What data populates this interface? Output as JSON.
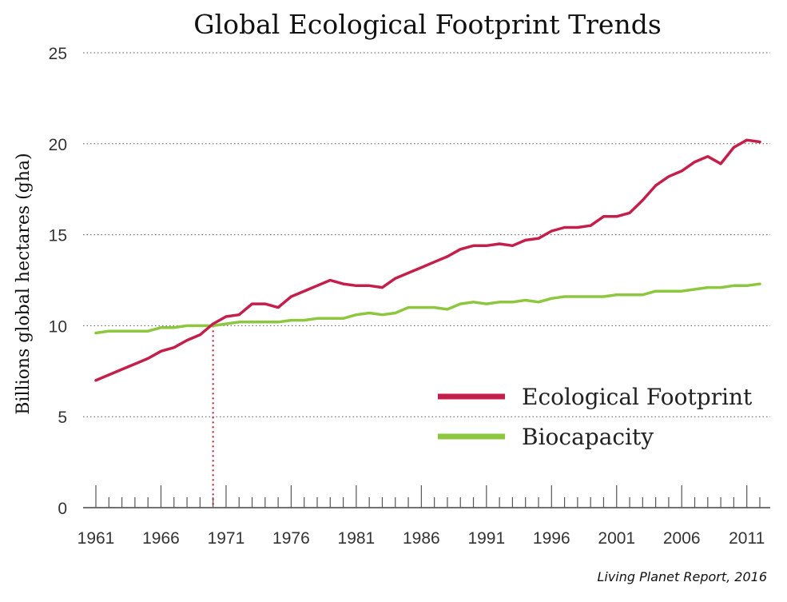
{
  "chart_data": {
    "type": "line",
    "title": "Global Ecological Footprint Trends",
    "ylabel": "Billions global hectares (gha)",
    "xlabel": "",
    "source": "Living Planet Report, 2016",
    "ylim": [
      0,
      25
    ],
    "xlim": [
      1961,
      2012
    ],
    "yticks": [
      "0",
      "5",
      "10",
      "15",
      "20",
      "25"
    ],
    "xticks": [
      "1961",
      "1966",
      "1971",
      "1976",
      "1981",
      "1986",
      "1991",
      "1996",
      "2001",
      "2006",
      "2011"
    ],
    "grid": true,
    "legend_position": "bottom-right",
    "marker": {
      "year": 1970,
      "label": ""
    },
    "x": [
      1961,
      1962,
      1963,
      1964,
      1965,
      1966,
      1967,
      1968,
      1969,
      1970,
      1971,
      1972,
      1973,
      1974,
      1975,
      1976,
      1977,
      1978,
      1979,
      1980,
      1981,
      1982,
      1983,
      1984,
      1985,
      1986,
      1987,
      1988,
      1989,
      1990,
      1991,
      1992,
      1993,
      1994,
      1995,
      1996,
      1997,
      1998,
      1999,
      2000,
      2001,
      2002,
      2003,
      2004,
      2005,
      2006,
      2007,
      2008,
      2009,
      2010,
      2011,
      2012
    ],
    "series": [
      {
        "name": "Ecological Footprint",
        "color": "#c41e4a",
        "values": [
          7.0,
          7.3,
          7.6,
          7.9,
          8.2,
          8.6,
          8.8,
          9.2,
          9.5,
          10.1,
          10.5,
          10.6,
          11.2,
          11.2,
          11.0,
          11.6,
          11.9,
          12.2,
          12.5,
          12.3,
          12.2,
          12.2,
          12.1,
          12.6,
          12.9,
          13.2,
          13.5,
          13.8,
          14.2,
          14.4,
          14.4,
          14.5,
          14.4,
          14.7,
          14.8,
          15.2,
          15.4,
          15.4,
          15.5,
          16.0,
          16.0,
          16.2,
          16.9,
          17.7,
          18.2,
          18.5,
          19.0,
          19.3,
          18.9,
          19.8,
          20.2,
          20.1
        ]
      },
      {
        "name": "Biocapacity",
        "color": "#8dc63f",
        "values": [
          9.6,
          9.7,
          9.7,
          9.7,
          9.7,
          9.9,
          9.9,
          10.0,
          10.0,
          10.0,
          10.1,
          10.2,
          10.2,
          10.2,
          10.2,
          10.3,
          10.3,
          10.4,
          10.4,
          10.4,
          10.6,
          10.7,
          10.6,
          10.7,
          11.0,
          11.0,
          11.0,
          10.9,
          11.2,
          11.3,
          11.2,
          11.3,
          11.3,
          11.4,
          11.3,
          11.5,
          11.6,
          11.6,
          11.6,
          11.6,
          11.7,
          11.7,
          11.7,
          11.9,
          11.9,
          11.9,
          12.0,
          12.1,
          12.1,
          12.2,
          12.2,
          12.3
        ]
      }
    ]
  }
}
